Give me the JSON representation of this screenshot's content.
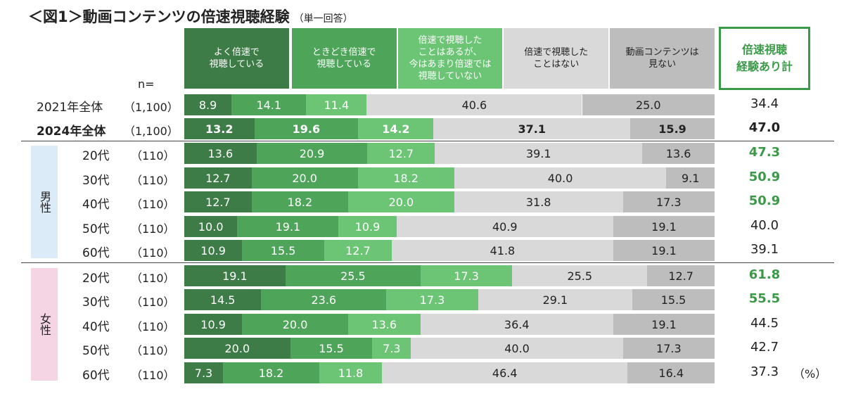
{
  "title": "＜図1＞動画コンテンツの倍速視聴経験",
  "subtitle": "（単一回答）",
  "colors": [
    "#3e7c47",
    "#4ea55a",
    "#6bc575",
    "#d9d9d9",
    "#bdbdbd"
  ],
  "n_label": "n=",
  "unit": "（%）",
  "group_labels": [
    {
      "label": "男性",
      "color": "#dcebf8"
    },
    {
      "label": "女性",
      "color": "#f5d5e4"
    }
  ],
  "chart_data": {
    "type": "bar",
    "orientation": "horizontal-stacked-100",
    "title": "＜図1＞動画コンテンツの倍速視聴経験",
    "subtitle": "（単一回答）",
    "series_labels": [
      "よく倍速で\n視聴している",
      "ときどき倍速で\n視聴している",
      "倍速で視聴した\nことはあるが、\n今はあまり倍速では\n視聴していない",
      "倍速で視聴した\nことはない",
      "動画コンテンツは\n見ない"
    ],
    "total_label": "倍速視聴\n経験あり計",
    "rows": [
      {
        "group": "",
        "label": "2021年全体",
        "n": "（1,100）",
        "values": [
          8.9,
          14.1,
          11.4,
          40.6,
          25.0
        ],
        "total": "34.4"
      },
      {
        "group": "",
        "label": "2024年全体",
        "n": "（1,100）",
        "values": [
          13.2,
          19.6,
          14.2,
          37.1,
          15.9
        ],
        "total": "47.0"
      },
      {
        "group": "男性",
        "label": "20代",
        "n": "（110）",
        "values": [
          13.6,
          20.9,
          12.7,
          39.1,
          13.6
        ],
        "total": "47.3"
      },
      {
        "group": "男性",
        "label": "30代",
        "n": "（110）",
        "values": [
          12.7,
          20.0,
          18.2,
          40.0,
          9.1
        ],
        "total": "50.9"
      },
      {
        "group": "男性",
        "label": "40代",
        "n": "（110）",
        "values": [
          12.7,
          18.2,
          20.0,
          31.8,
          17.3
        ],
        "total": "50.9"
      },
      {
        "group": "男性",
        "label": "50代",
        "n": "（110）",
        "values": [
          10.0,
          19.1,
          10.9,
          40.9,
          19.1
        ],
        "total": "40.0"
      },
      {
        "group": "男性",
        "label": "60代",
        "n": "（110）",
        "values": [
          10.9,
          15.5,
          12.7,
          41.8,
          19.1
        ],
        "total": "39.1"
      },
      {
        "group": "女性",
        "label": "20代",
        "n": "（110）",
        "values": [
          19.1,
          25.5,
          17.3,
          25.5,
          12.7
        ],
        "total": "61.8"
      },
      {
        "group": "女性",
        "label": "30代",
        "n": "（110）",
        "values": [
          14.5,
          23.6,
          17.3,
          29.1,
          15.5
        ],
        "total": "55.5"
      },
      {
        "group": "女性",
        "label": "40代",
        "n": "（110）",
        "values": [
          10.9,
          20.0,
          13.6,
          36.4,
          19.1
        ],
        "total": "44.5"
      },
      {
        "group": "女性",
        "label": "50代",
        "n": "（110）",
        "values": [
          20.0,
          15.5,
          7.3,
          40.0,
          17.3
        ],
        "total": "42.7"
      },
      {
        "group": "女性",
        "label": "60代",
        "n": "（110）",
        "values": [
          7.3,
          18.2,
          11.8,
          46.4,
          16.4
        ],
        "total": "37.3"
      }
    ],
    "highlight_totals": [
      "47.3",
      "50.9",
      "50.9",
      "61.8",
      "55.5"
    ],
    "bold_row": "2024年全体"
  }
}
